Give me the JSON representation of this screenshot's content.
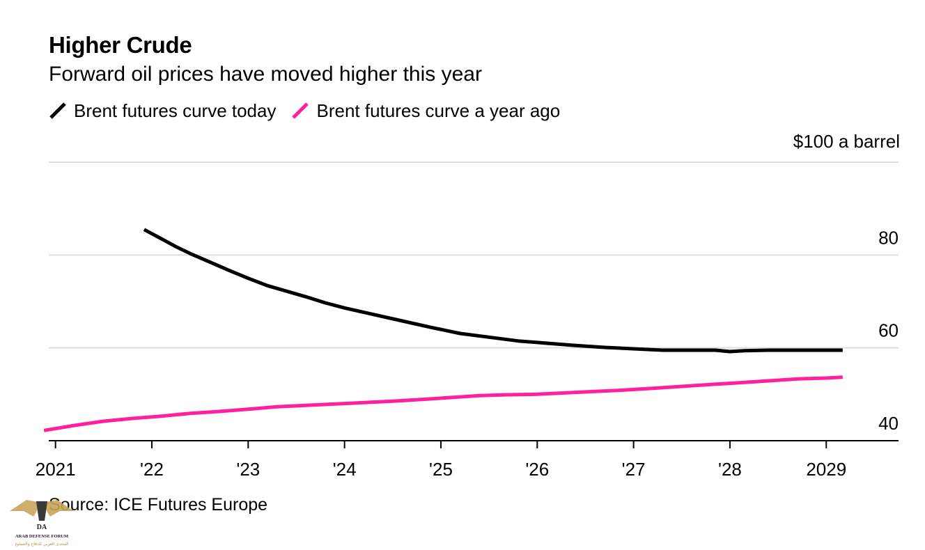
{
  "title": "Higher Crude",
  "subtitle": "Forward oil prices have moved higher this year",
  "source": "Source: ICE Futures Europe",
  "logo": {
    "text": "ARAB DEFENSE FORUM",
    "initials": "DA",
    "arabic_text": "المنتدى العربي للدفاع والتسليح"
  },
  "colors": {
    "today": "#000000",
    "year_ago": "#ff1f9f",
    "grid": "#dddddd",
    "axis": "#000000"
  },
  "chart_data": {
    "type": "line",
    "title": "Higher Crude",
    "subtitle": "Forward oil prices have moved higher this year",
    "unit_label": "$100 a barrel",
    "ylim": [
      40,
      100
    ],
    "yticks": [
      40,
      60,
      80,
      100
    ],
    "ytick_labels": [
      "40",
      "60",
      "80",
      "$100 a barrel"
    ],
    "xlim": [
      2020.93,
      2029.75
    ],
    "xticks": [
      2021,
      2022,
      2023,
      2024,
      2025,
      2026,
      2027,
      2028,
      2029
    ],
    "xtick_labels": [
      "2021",
      "'22",
      "'23",
      "'24",
      "'25",
      "'26",
      "'27",
      "'28",
      "2029"
    ],
    "grid": true,
    "legend_position": "top-left",
    "series": [
      {
        "name": "Brent futures curve today",
        "color_key": "today",
        "x": [
          2021.92,
          2022.1,
          2022.25,
          2022.4,
          2022.6,
          2022.8,
          2023.0,
          2023.2,
          2023.4,
          2023.6,
          2023.8,
          2024.0,
          2024.3,
          2024.6,
          2024.9,
          2025.2,
          2025.5,
          2025.8,
          2026.1,
          2026.4,
          2026.7,
          2027.0,
          2027.3,
          2027.6,
          2027.85,
          2028.0,
          2028.15,
          2028.4,
          2028.7,
          2029.0,
          2029.17
        ],
        "values": [
          85.5,
          83.5,
          81.8,
          80.3,
          78.5,
          76.7,
          75.0,
          73.4,
          72.2,
          71.0,
          69.7,
          68.6,
          67.2,
          65.8,
          64.4,
          63.1,
          62.3,
          61.5,
          61.0,
          60.5,
          60.1,
          59.8,
          59.5,
          59.5,
          59.5,
          59.2,
          59.4,
          59.5,
          59.5,
          59.5,
          59.5
        ]
      },
      {
        "name": "Brent futures curve a year ago",
        "color_key": "year_ago",
        "x": [
          2020.88,
          2021.2,
          2021.5,
          2021.8,
          2022.1,
          2022.4,
          2022.7,
          2023.0,
          2023.3,
          2023.6,
          2023.9,
          2024.2,
          2024.5,
          2024.8,
          2025.1,
          2025.4,
          2025.7,
          2026.0,
          2026.3,
          2026.6,
          2026.9,
          2027.2,
          2027.5,
          2027.8,
          2028.1,
          2028.4,
          2028.7,
          2029.0,
          2029.17
        ],
        "values": [
          42.2,
          43.3,
          44.2,
          44.8,
          45.3,
          45.9,
          46.3,
          46.8,
          47.3,
          47.6,
          47.9,
          48.2,
          48.5,
          48.9,
          49.3,
          49.7,
          49.9,
          50.0,
          50.3,
          50.6,
          50.9,
          51.3,
          51.7,
          52.1,
          52.5,
          52.9,
          53.3,
          53.5,
          53.7
        ]
      }
    ]
  }
}
